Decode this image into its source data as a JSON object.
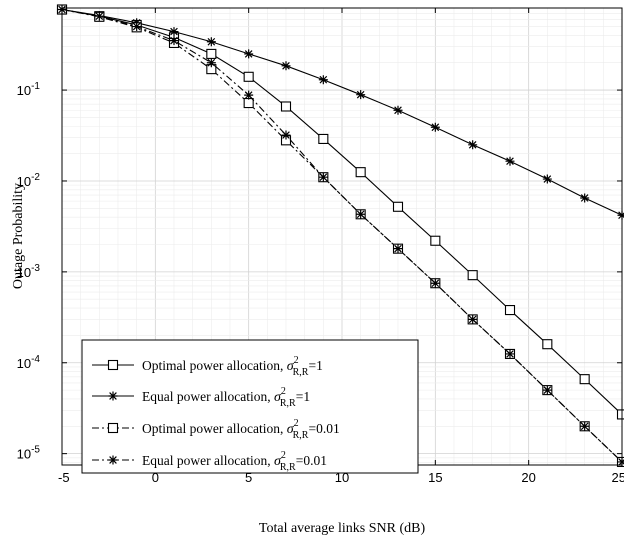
{
  "chart_data": {
    "type": "line",
    "xlabel": "Total average links SNR (dB)",
    "ylabel": "Outage Probability",
    "xlim": [
      -5,
      25
    ],
    "ylim": [
      7.5e-06,
      0.8
    ],
    "yscale": "log",
    "grid": true,
    "legend_position": "bottom-left",
    "x_ticks": [
      "-5",
      "0",
      "5",
      "10",
      "15",
      "20",
      "25"
    ],
    "y_ticks": [
      {
        "value": 0.1,
        "base": "10",
        "exp": "-1"
      },
      {
        "value": 0.01,
        "base": "10",
        "exp": "-2"
      },
      {
        "value": 0.001,
        "base": "10",
        "exp": "-3"
      },
      {
        "value": 0.0001,
        "base": "10",
        "exp": "-4"
      },
      {
        "value": 1e-05,
        "base": "10",
        "exp": "-5"
      }
    ],
    "x": [
      -5,
      -3,
      -1,
      1,
      3,
      5,
      7,
      9,
      11,
      13,
      15,
      17,
      19,
      21,
      23,
      25
    ],
    "series": [
      {
        "name": "Optimal power allocation, σ²R,R=1",
        "legend": {
          "prefix": "Optimal power allocation, ",
          "sym": "σ",
          "sup": "2",
          "sub": "R,R",
          "suffix": "=1"
        },
        "marker": "square",
        "dash": "solid",
        "values": [
          0.77,
          0.65,
          0.52,
          0.38,
          0.25,
          0.14,
          0.066,
          0.029,
          0.0125,
          0.0052,
          0.0022,
          0.00092,
          0.00038,
          0.00016,
          6.6e-05,
          2.7e-05
        ]
      },
      {
        "name": "Equal power allocation, σ²R,R=1",
        "legend": {
          "prefix": "Equal power allocation, ",
          "sym": "σ",
          "sup": "2",
          "sub": "R,R",
          "suffix": "=1"
        },
        "marker": "star",
        "dash": "solid",
        "values": [
          0.77,
          0.66,
          0.55,
          0.44,
          0.34,
          0.25,
          0.185,
          0.13,
          0.089,
          0.06,
          0.039,
          0.025,
          0.0165,
          0.0105,
          0.0065,
          0.0042
        ]
      },
      {
        "name": "Optimal power allocation, σ²R,R=0.01",
        "legend": {
          "prefix": "Optimal power allocation, ",
          "sym": "σ",
          "sup": "2",
          "sub": "R,R",
          "suffix": "=0.01"
        },
        "marker": "square",
        "dash": "dashdot",
        "values": [
          0.77,
          0.64,
          0.49,
          0.33,
          0.17,
          0.072,
          0.028,
          0.011,
          0.0043,
          0.0018,
          0.00075,
          0.0003,
          0.000125,
          5e-05,
          2e-05,
          8.1e-06
        ]
      },
      {
        "name": "Equal power allocation, σ²R,R=0.01",
        "legend": {
          "prefix": "Equal power allocation, ",
          "sym": "σ",
          "sup": "2",
          "sub": "R,R",
          "suffix": "=0.01"
        },
        "marker": "star",
        "dash": "dashdot",
        "values": [
          0.77,
          0.65,
          0.5,
          0.35,
          0.2,
          0.088,
          0.032,
          0.011,
          0.0043,
          0.0018,
          0.00075,
          0.0003,
          0.000125,
          5e-05,
          2e-05,
          8.1e-06
        ]
      }
    ]
  }
}
